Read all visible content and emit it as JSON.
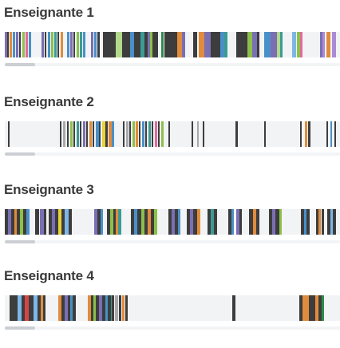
{
  "timeline_domain": [
    0,
    420
  ],
  "palette": {
    "purple": "#7b6fb4",
    "blue": "#4a90c8",
    "green": "#2f8b4a",
    "lime": "#8cc04b",
    "light_green": "#b4d98a",
    "orange": "#e08c3c",
    "dark": "#3d3d3d",
    "grey": "#a9a9a9",
    "yellow": "#e6d23c",
    "light_blue": "#7fb6e6",
    "pink": "#e36b9a",
    "teal": "#3b9b94",
    "brown": "#8b5a2b",
    "violet": "#a98bd6",
    "red": "#d64545"
  },
  "teachers": [
    {
      "name": "Enseignante 1",
      "sessions": [
        [
          0,
          3,
          "purple"
        ],
        [
          3,
          2,
          "dark"
        ],
        [
          6,
          3,
          "orange"
        ],
        [
          10,
          3,
          "blue"
        ],
        [
          14,
          3,
          "purple"
        ],
        [
          18,
          2,
          "dark"
        ],
        [
          22,
          3,
          "lime"
        ],
        [
          26,
          3,
          "pink"
        ],
        [
          30,
          3,
          "blue"
        ],
        [
          46,
          3,
          "purple"
        ],
        [
          50,
          2,
          "dark"
        ],
        [
          54,
          3,
          "blue"
        ],
        [
          58,
          3,
          "lime"
        ],
        [
          62,
          3,
          "teal"
        ],
        [
          66,
          2,
          "dark"
        ],
        [
          70,
          3,
          "orange"
        ],
        [
          78,
          3,
          "blue"
        ],
        [
          82,
          3,
          "purple"
        ],
        [
          86,
          2,
          "dark"
        ],
        [
          90,
          3,
          "lime"
        ],
        [
          94,
          3,
          "teal"
        ],
        [
          98,
          3,
          "blue"
        ],
        [
          108,
          3,
          "purple"
        ],
        [
          112,
          3,
          "blue"
        ],
        [
          116,
          3,
          "dark"
        ],
        [
          123,
          16,
          "dark"
        ],
        [
          139,
          8,
          "light_green"
        ],
        [
          147,
          10,
          "dark"
        ],
        [
          157,
          5,
          "blue"
        ],
        [
          162,
          8,
          "dark"
        ],
        [
          170,
          5,
          "teal"
        ],
        [
          175,
          4,
          "dark"
        ],
        [
          179,
          3,
          "purple"
        ],
        [
          182,
          3,
          "lime"
        ],
        [
          185,
          7,
          "dark"
        ],
        [
          196,
          3,
          "green"
        ],
        [
          200,
          16,
          "dark"
        ],
        [
          216,
          6,
          "orange"
        ],
        [
          222,
          4,
          "purple"
        ],
        [
          236,
          5,
          "dark"
        ],
        [
          243,
          7,
          "orange"
        ],
        [
          250,
          8,
          "purple"
        ],
        [
          258,
          12,
          "dark"
        ],
        [
          270,
          5,
          "blue"
        ],
        [
          275,
          4,
          "teal"
        ],
        [
          290,
          14,
          "dark"
        ],
        [
          304,
          6,
          "lime"
        ],
        [
          310,
          6,
          "purple"
        ],
        [
          316,
          3,
          "dark"
        ],
        [
          325,
          8,
          "blue"
        ],
        [
          333,
          8,
          "purple"
        ],
        [
          341,
          4,
          "light_green"
        ],
        [
          345,
          3,
          "teal"
        ],
        [
          360,
          5,
          "light_blue"
        ],
        [
          366,
          4,
          "lime"
        ],
        [
          370,
          3,
          "pink"
        ],
        [
          395,
          3,
          "purple"
        ],
        [
          398,
          3,
          "violet"
        ],
        [
          403,
          5,
          "orange"
        ],
        [
          410,
          5,
          "violet"
        ]
      ]
    },
    {
      "name": "Enseignante 2",
      "sessions": [
        [
          4,
          2,
          "dark"
        ],
        [
          69,
          2,
          "dark"
        ],
        [
          73,
          3,
          "grey"
        ],
        [
          78,
          2,
          "dark"
        ],
        [
          82,
          3,
          "lime"
        ],
        [
          86,
          2,
          "dark"
        ],
        [
          90,
          3,
          "teal"
        ],
        [
          94,
          2,
          "dark"
        ],
        [
          98,
          3,
          "purple"
        ],
        [
          102,
          2,
          "dark"
        ],
        [
          106,
          3,
          "orange"
        ],
        [
          110,
          2,
          "dark"
        ],
        [
          114,
          4,
          "blue"
        ],
        [
          118,
          2,
          "dark"
        ],
        [
          122,
          4,
          "yellow"
        ],
        [
          126,
          3,
          "dark"
        ],
        [
          130,
          4,
          "orange"
        ],
        [
          134,
          3,
          "blue"
        ],
        [
          148,
          2,
          "dark"
        ],
        [
          152,
          3,
          "grey"
        ],
        [
          156,
          2,
          "dark"
        ],
        [
          160,
          3,
          "lime"
        ],
        [
          164,
          3,
          "orange"
        ],
        [
          168,
          2,
          "dark"
        ],
        [
          172,
          3,
          "blue"
        ],
        [
          176,
          2,
          "dark"
        ],
        [
          180,
          3,
          "teal"
        ],
        [
          184,
          2,
          "dark"
        ],
        [
          188,
          3,
          "pink"
        ],
        [
          192,
          2,
          "dark"
        ],
        [
          196,
          3,
          "lime"
        ],
        [
          205,
          2,
          "dark"
        ],
        [
          234,
          2,
          "dark"
        ],
        [
          241,
          2,
          "grey"
        ],
        [
          248,
          2,
          "dark"
        ],
        [
          289,
          3,
          "dark"
        ],
        [
          325,
          2,
          "dark"
        ],
        [
          370,
          2,
          "dark"
        ],
        [
          376,
          3,
          "orange"
        ],
        [
          380,
          3,
          "dark"
        ],
        [
          403,
          2,
          "dark"
        ],
        [
          408,
          2,
          "blue"
        ],
        [
          413,
          2,
          "dark"
        ]
      ]
    },
    {
      "name": "Enseignante 3",
      "sessions": [
        [
          0,
          4,
          "dark"
        ],
        [
          4,
          4,
          "purple"
        ],
        [
          8,
          4,
          "dark"
        ],
        [
          12,
          3,
          "orange"
        ],
        [
          15,
          4,
          "dark"
        ],
        [
          19,
          4,
          "lime"
        ],
        [
          23,
          4,
          "dark"
        ],
        [
          27,
          4,
          "blue"
        ],
        [
          38,
          5,
          "dark"
        ],
        [
          44,
          5,
          "purple"
        ],
        [
          49,
          3,
          "dark"
        ],
        [
          55,
          4,
          "dark"
        ],
        [
          59,
          4,
          "purple"
        ],
        [
          63,
          4,
          "dark"
        ],
        [
          67,
          4,
          "yellow"
        ],
        [
          71,
          4,
          "dark"
        ],
        [
          75,
          5,
          "light_blue"
        ],
        [
          80,
          4,
          "dark"
        ],
        [
          112,
          4,
          "purple"
        ],
        [
          116,
          4,
          "dark"
        ],
        [
          120,
          3,
          "blue"
        ],
        [
          128,
          4,
          "dark"
        ],
        [
          132,
          4,
          "lime"
        ],
        [
          136,
          3,
          "dark"
        ],
        [
          139,
          3,
          "orange"
        ],
        [
          142,
          4,
          "teal"
        ],
        [
          158,
          4,
          "dark"
        ],
        [
          162,
          4,
          "blue"
        ],
        [
          166,
          5,
          "dark"
        ],
        [
          171,
          4,
          "lime"
        ],
        [
          175,
          4,
          "dark"
        ],
        [
          179,
          4,
          "orange"
        ],
        [
          183,
          4,
          "dark"
        ],
        [
          187,
          4,
          "lime"
        ],
        [
          205,
          4,
          "dark"
        ],
        [
          209,
          4,
          "purple"
        ],
        [
          213,
          4,
          "dark"
        ],
        [
          217,
          3,
          "blue"
        ],
        [
          228,
          4,
          "dark"
        ],
        [
          232,
          4,
          "purple"
        ],
        [
          236,
          5,
          "dark"
        ],
        [
          241,
          4,
          "orange"
        ],
        [
          254,
          4,
          "dark"
        ],
        [
          258,
          4,
          "teal"
        ],
        [
          262,
          4,
          "dark"
        ],
        [
          280,
          4,
          "dark"
        ],
        [
          284,
          3,
          "blue"
        ],
        [
          290,
          4,
          "purple"
        ],
        [
          294,
          3,
          "dark"
        ],
        [
          306,
          5,
          "dark"
        ],
        [
          311,
          4,
          "orange"
        ],
        [
          315,
          4,
          "dark"
        ],
        [
          331,
          4,
          "dark"
        ],
        [
          335,
          4,
          "purple"
        ],
        [
          339,
          5,
          "dark"
        ],
        [
          344,
          3,
          "lime"
        ],
        [
          371,
          4,
          "dark"
        ],
        [
          375,
          3,
          "blue"
        ],
        [
          378,
          4,
          "dark"
        ],
        [
          390,
          3,
          "dark"
        ],
        [
          393,
          3,
          "orange"
        ],
        [
          397,
          3,
          "dark"
        ],
        [
          404,
          4,
          "dark"
        ],
        [
          408,
          3,
          "light_blue"
        ],
        [
          411,
          4,
          "dark"
        ]
      ]
    },
    {
      "name": "Enseignante 4",
      "sessions": [
        [
          6,
          10,
          "dark"
        ],
        [
          16,
          5,
          "light_blue"
        ],
        [
          21,
          4,
          "dark"
        ],
        [
          25,
          5,
          "red"
        ],
        [
          30,
          6,
          "dark"
        ],
        [
          36,
          5,
          "light_blue"
        ],
        [
          41,
          4,
          "dark"
        ],
        [
          45,
          3,
          "orange"
        ],
        [
          48,
          3,
          "dark"
        ],
        [
          67,
          4,
          "orange"
        ],
        [
          71,
          4,
          "dark"
        ],
        [
          75,
          4,
          "purple"
        ],
        [
          79,
          3,
          "dark"
        ],
        [
          82,
          3,
          "blue"
        ],
        [
          85,
          4,
          "dark"
        ],
        [
          104,
          4,
          "orange"
        ],
        [
          108,
          3,
          "dark"
        ],
        [
          111,
          3,
          "lime"
        ],
        [
          114,
          4,
          "dark"
        ],
        [
          118,
          4,
          "purple"
        ],
        [
          122,
          4,
          "dark"
        ],
        [
          126,
          3,
          "blue"
        ],
        [
          129,
          4,
          "dark"
        ],
        [
          133,
          3,
          "teal"
        ],
        [
          134,
          3,
          "dark"
        ],
        [
          138,
          4,
          "grey"
        ],
        [
          143,
          3,
          "dark"
        ],
        [
          147,
          3,
          "orange"
        ],
        [
          151,
          3,
          "dark"
        ],
        [
          285,
          4,
          "dark"
        ],
        [
          369,
          4,
          "dark"
        ],
        [
          373,
          8,
          "orange"
        ],
        [
          381,
          8,
          "dark"
        ],
        [
          389,
          4,
          "orange"
        ],
        [
          393,
          4,
          "dark"
        ],
        [
          397,
          3,
          "green"
        ]
      ]
    }
  ]
}
